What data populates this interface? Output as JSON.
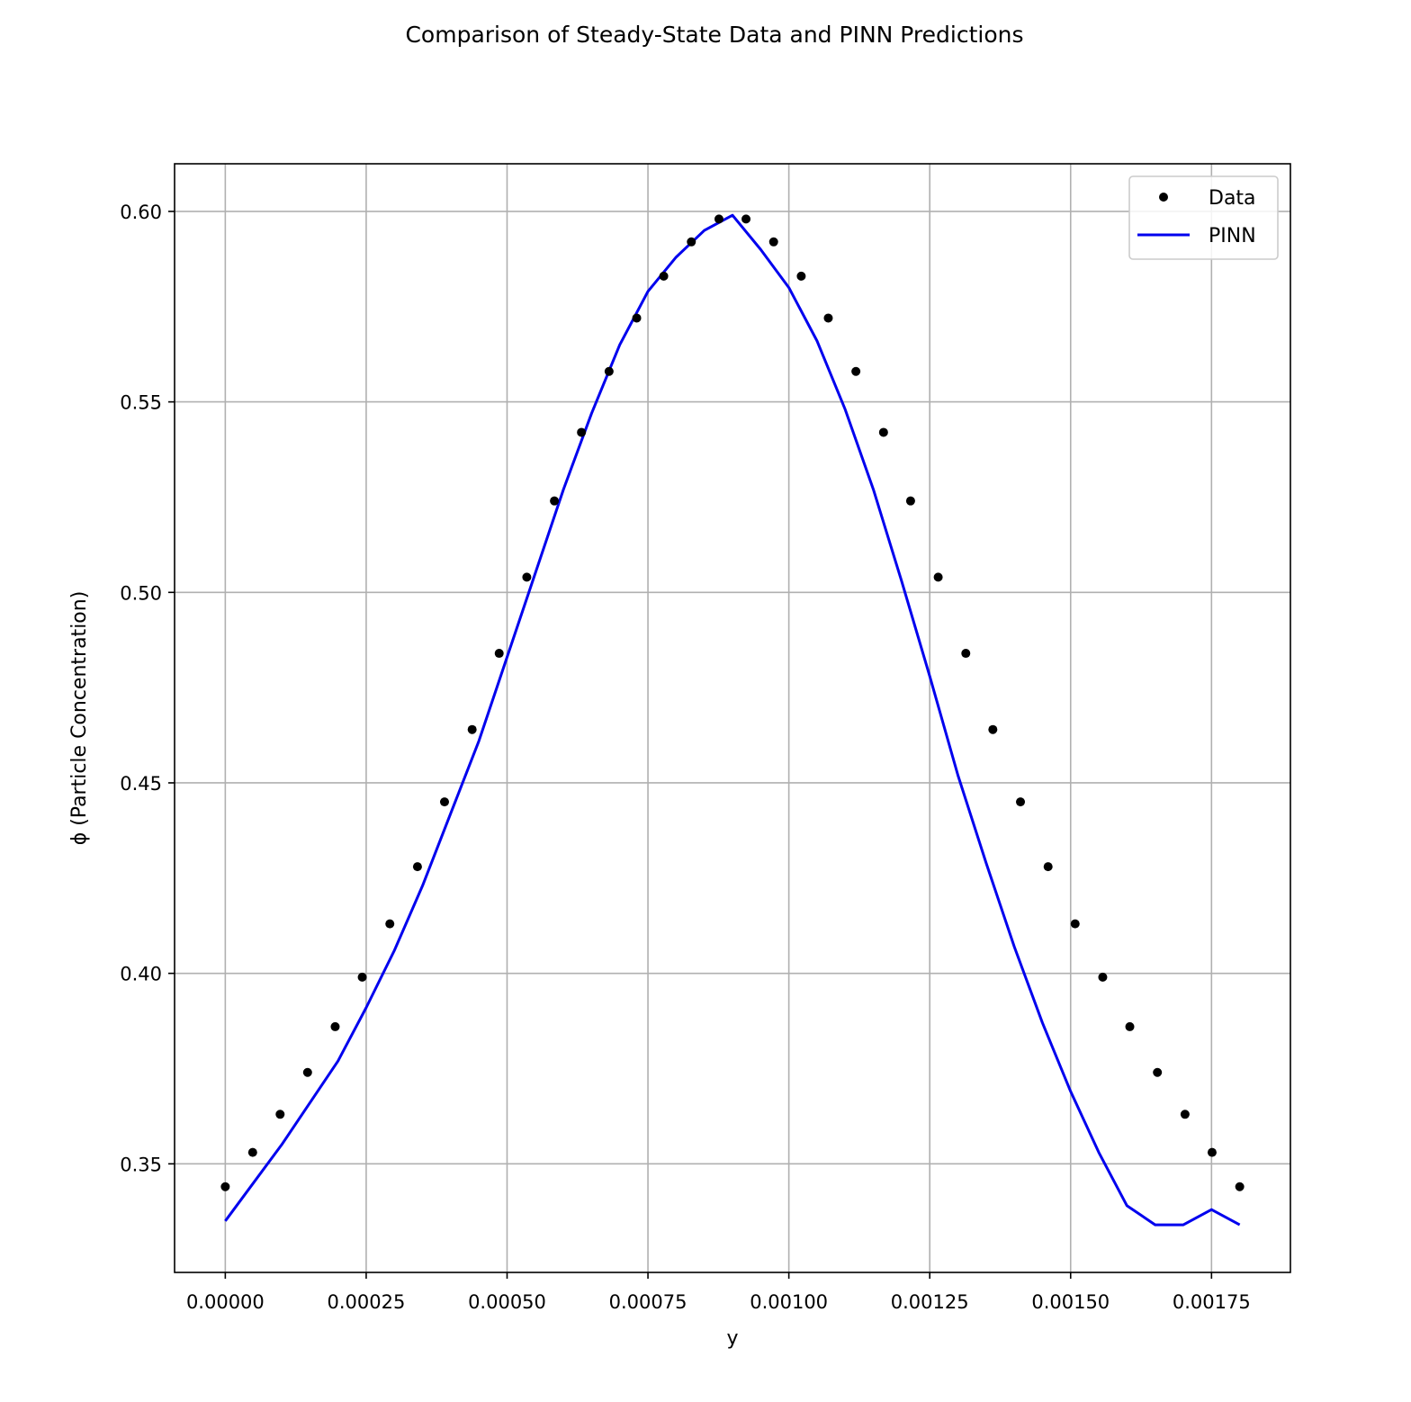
{
  "chart_data": {
    "type": "line",
    "title": "Comparison of Steady-State Data and PINN Predictions",
    "xlabel": "y",
    "ylabel": "ϕ (Particle Concentration)",
    "xlim": [
      -9e-05,
      0.00189
    ],
    "ylim": [
      0.3215,
      0.6125
    ],
    "grid": true,
    "legend_position": "upper-right",
    "x_ticks": [
      0.0,
      0.00025,
      0.0005,
      0.00075,
      0.001,
      0.00125,
      0.0015,
      0.00175
    ],
    "x_tick_labels": [
      "0.00000",
      "0.00025",
      "0.00050",
      "0.00075",
      "0.00100",
      "0.00125",
      "0.00150",
      "0.00175"
    ],
    "y_ticks": [
      0.35,
      0.4,
      0.45,
      0.5,
      0.55,
      0.6
    ],
    "y_tick_labels": [
      "0.35",
      "0.40",
      "0.45",
      "0.50",
      "0.55",
      "0.60"
    ],
    "series": [
      {
        "name": "Data",
        "kind": "scatter",
        "color": "#000000",
        "x": [
          0.0,
          4.86e-05,
          9.73e-05,
          0.000146,
          0.000195,
          0.000243,
          0.000292,
          0.000341,
          0.000389,
          0.000438,
          0.000486,
          0.000535,
          0.000584,
          0.000632,
          0.000681,
          0.00073,
          0.000778,
          0.000827,
          0.000876,
          0.000924,
          0.000973,
          0.001022,
          0.00107,
          0.001119,
          0.001168,
          0.001216,
          0.001265,
          0.001314,
          0.001362,
          0.001411,
          0.00146,
          0.001508,
          0.001557,
          0.001605,
          0.001654,
          0.001703,
          0.001751,
          0.0018
        ],
        "y": [
          0.344,
          0.353,
          0.363,
          0.374,
          0.386,
          0.399,
          0.413,
          0.428,
          0.445,
          0.464,
          0.484,
          0.504,
          0.524,
          0.542,
          0.558,
          0.572,
          0.583,
          0.592,
          0.598,
          0.598,
          0.592,
          0.583,
          0.572,
          0.558,
          0.542,
          0.524,
          0.504,
          0.484,
          0.464,
          0.445,
          0.428,
          0.413,
          0.399,
          0.386,
          0.374,
          0.363,
          0.353,
          0.344
        ]
      },
      {
        "name": "PINN",
        "kind": "line",
        "color": "#0000ee",
        "x": [
          0.0,
          3e-05,
          0.0001,
          0.0002,
          0.00025,
          0.0003,
          0.00035,
          0.0004,
          0.00045,
          0.0005,
          0.00055,
          0.0006,
          0.00065,
          0.0007,
          0.00075,
          0.0008,
          0.00085,
          0.0009,
          0.00095,
          0.001,
          0.00105,
          0.0011,
          0.00115,
          0.0012,
          0.00125,
          0.0013,
          0.00135,
          0.0014,
          0.00145,
          0.0015,
          0.00155,
          0.0016,
          0.00165,
          0.0017,
          0.00175,
          0.0018
        ],
        "y": [
          0.335,
          0.341,
          0.355,
          0.377,
          0.391,
          0.406,
          0.423,
          0.442,
          0.461,
          0.483,
          0.505,
          0.527,
          0.547,
          0.565,
          0.579,
          0.588,
          0.595,
          0.599,
          0.59,
          0.58,
          0.566,
          0.548,
          0.527,
          0.503,
          0.478,
          0.452,
          0.429,
          0.407,
          0.387,
          0.369,
          0.353,
          0.339,
          0.334,
          0.334,
          0.338,
          0.334
        ]
      }
    ]
  }
}
